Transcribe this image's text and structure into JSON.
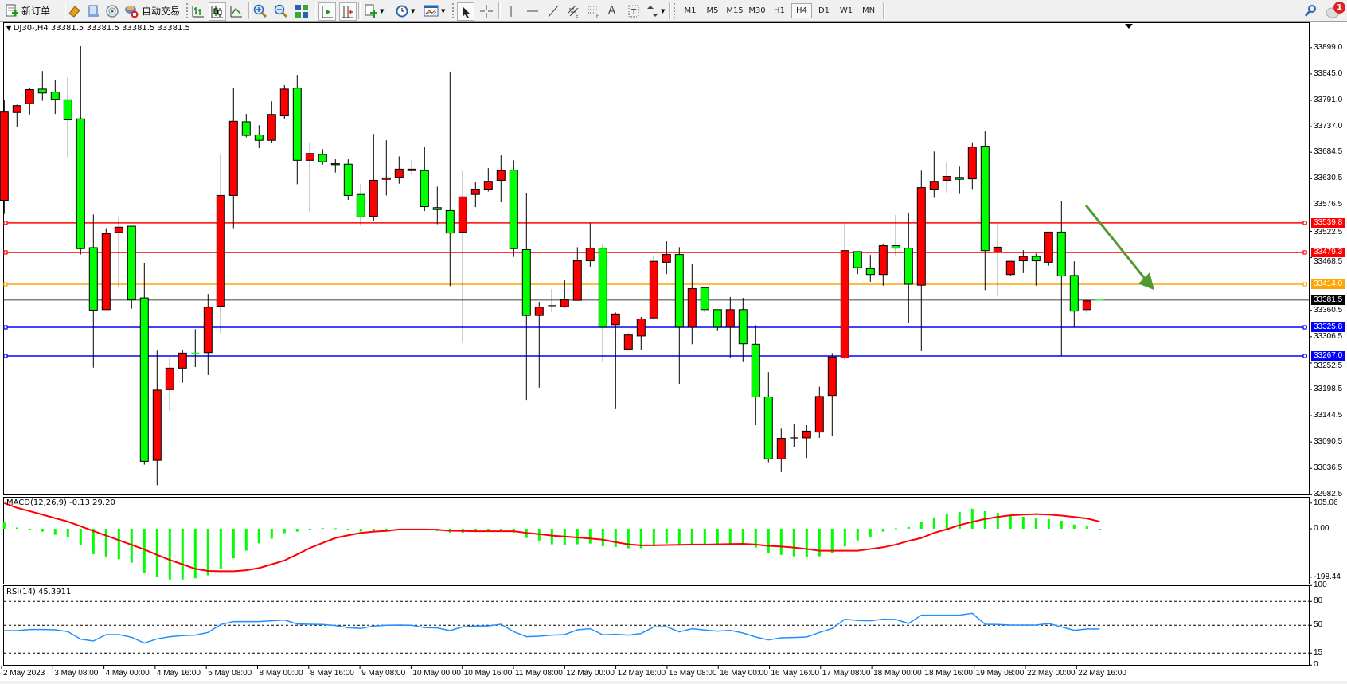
{
  "toolbar": {
    "new_order_label": "新订单",
    "auto_trading_label": "自动交易",
    "timeframes": [
      "M1",
      "M5",
      "M15",
      "M30",
      "H1",
      "H4",
      "D1",
      "W1",
      "MN"
    ],
    "active_timeframe": "H4",
    "notification_count": "1",
    "icons": [
      "new-order-icon",
      "market-watch-icon",
      "data-window-icon",
      "signals-icon",
      "auto-trading-icon",
      "bar-chart-icon",
      "candlestick-icon",
      "line-chart-icon",
      "zoom-in-icon",
      "zoom-out-icon",
      "tile-windows-icon",
      "auto-scroll-icon",
      "chart-shift-icon",
      "indicators-icon",
      "periods-icon",
      "templates-icon",
      "cursor-icon",
      "crosshair-icon",
      "vertical-line-icon",
      "horizontal-line-icon",
      "trendline-icon",
      "equidistant-channel-icon",
      "fibonacci-icon",
      "text-icon",
      "text-label-icon",
      "arrows-icon",
      "search-icon",
      "notification-icon"
    ]
  },
  "chart": {
    "header": "DJ30-,H4  33381.5 33381.5 33381.5 33381.5",
    "symbol": "DJ30-",
    "timeframe": "H4",
    "bid": 33381.5,
    "bid_label": "33381.5",
    "colors": {
      "bull": "#ff0000",
      "bear": "#00ff00",
      "background": "#ffffff",
      "arrow": "#4f9a2e",
      "macd_hist": "#00ff00",
      "macd_signal": "#ff0000",
      "rsi": "#1e90ff"
    },
    "price_axis": [
      "33899.0",
      "33845.0",
      "33791.0",
      "33737.0",
      "33684.5",
      "33630.5",
      "33576.5",
      "33522.5",
      "33468.5",
      "33360.5",
      "33306.5",
      "33252.5",
      "33198.5",
      "33144.5",
      "33090.5",
      "33036.5",
      "32982.5"
    ],
    "levels": [
      {
        "price": 33539.8,
        "label": "33539.8",
        "color": "#ff0000"
      },
      {
        "price": 33479.3,
        "label": "33479.3",
        "color": "#ff0000"
      },
      {
        "price": 33414.0,
        "label": "33414.0",
        "color": "#ffa500"
      },
      {
        "price": 33325.8,
        "label": "33325.8",
        "color": "#0000ff"
      },
      {
        "price": 33267.0,
        "label": "33267.0",
        "color": "#0000ff"
      }
    ],
    "arrow": {
      "direction": "down",
      "from_price": 33576,
      "to_price": 33402,
      "color": "#4f9a2e"
    },
    "time_axis": [
      "2 May 2023",
      "3 May 08:00",
      "4 May 00:00",
      "4 May 16:00",
      "5 May 08:00",
      "8 May 00:00",
      "8 May 16:00",
      "9 May 08:00",
      "10 May 00:00",
      "10 May 16:00",
      "11 May 08:00",
      "12 May 00:00",
      "12 May 16:00",
      "15 May 08:00",
      "16 May 00:00",
      "16 May 16:00",
      "17 May 08:00",
      "18 May 00:00",
      "18 May 16:00",
      "19 May 08:00",
      "22 May 00:00",
      "22 May 16:00"
    ]
  },
  "macd": {
    "label": "MACD(12,26,9) -0.13 29.20",
    "axis": [
      "105.06",
      "0.00",
      "-198.44"
    ]
  },
  "rsi": {
    "label": "RSI(14) 45.3911",
    "axis": [
      "100",
      "80",
      "50",
      "15",
      "0"
    ],
    "levels": [
      80,
      50,
      15
    ]
  },
  "chart_data": {
    "type": "candlestick",
    "ohlc_order": [
      "open",
      "high",
      "low",
      "close"
    ],
    "ylim": [
      32982.5,
      33899.0
    ],
    "candles": [
      [
        33586,
        33791,
        33558,
        33767
      ],
      [
        33766,
        33782,
        33736,
        33780
      ],
      [
        33784,
        33817,
        33762,
        33813
      ],
      [
        33814,
        33851,
        33790,
        33806
      ],
      [
        33808,
        33832,
        33763,
        33793
      ],
      [
        33792,
        33838,
        33674,
        33751
      ],
      [
        33753,
        33902,
        33475,
        33487
      ],
      [
        33489,
        33557,
        33243,
        33361
      ],
      [
        33362,
        33529,
        33362,
        33518
      ],
      [
        33520,
        33552,
        33409,
        33531
      ],
      [
        33533,
        33533,
        33364,
        33382
      ],
      [
        33386,
        33458,
        33044,
        33051
      ],
      [
        33053,
        33278,
        33002,
        33197
      ],
      [
        33198,
        33262,
        33155,
        33242
      ],
      [
        33242,
        33280,
        33212,
        33273
      ],
      [
        33273,
        33322,
        33244,
        33273
      ],
      [
        33274,
        33394,
        33228,
        33367
      ],
      [
        33369,
        33680,
        33314,
        33596
      ],
      [
        33596,
        33817,
        33529,
        33748
      ],
      [
        33747,
        33763,
        33715,
        33719
      ],
      [
        33720,
        33740,
        33693,
        33709
      ],
      [
        33709,
        33789,
        33703,
        33762
      ],
      [
        33759,
        33822,
        33752,
        33814
      ],
      [
        33816,
        33843,
        33619,
        33668
      ],
      [
        33668,
        33704,
        33563,
        33682
      ],
      [
        33680,
        33691,
        33659,
        33665
      ],
      [
        33661,
        33670,
        33643,
        33659
      ],
      [
        33660,
        33670,
        33587,
        33596
      ],
      [
        33598,
        33619,
        33534,
        33552
      ],
      [
        33553,
        33722,
        33543,
        33627
      ],
      [
        33629,
        33709,
        33596,
        33632
      ],
      [
        33633,
        33676,
        33620,
        33650
      ],
      [
        33647,
        33668,
        33639,
        33650
      ],
      [
        33647,
        33696,
        33564,
        33573
      ],
      [
        33571,
        33614,
        33537,
        33567
      ],
      [
        33565,
        33850,
        33410,
        33519
      ],
      [
        33521,
        33646,
        33295,
        33593
      ],
      [
        33598,
        33623,
        33572,
        33609
      ],
      [
        33609,
        33652,
        33604,
        33625
      ],
      [
        33627,
        33678,
        33582,
        33647
      ],
      [
        33648,
        33668,
        33470,
        33487
      ],
      [
        33485,
        33601,
        33177,
        33350
      ],
      [
        33350,
        33378,
        33202,
        33367
      ],
      [
        33370,
        33404,
        33357,
        33370
      ],
      [
        33368,
        33422,
        33366,
        33382
      ],
      [
        33381,
        33490,
        33381,
        33462
      ],
      [
        33462,
        33539,
        33450,
        33488
      ],
      [
        33488,
        33497,
        33254,
        33326
      ],
      [
        33331,
        33356,
        33158,
        33353
      ],
      [
        33281,
        33313,
        33279,
        33310
      ],
      [
        33308,
        33347,
        33279,
        33343
      ],
      [
        33345,
        33471,
        33341,
        33461
      ],
      [
        33459,
        33502,
        33435,
        33475
      ],
      [
        33475,
        33490,
        33210,
        33326
      ],
      [
        33326,
        33455,
        33291,
        33405
      ],
      [
        33407,
        33407,
        33357,
        33362
      ],
      [
        33362,
        33362,
        33318,
        33326
      ],
      [
        33326,
        33388,
        33264,
        33362
      ],
      [
        33362,
        33386,
        33256,
        33292
      ],
      [
        33291,
        33330,
        33125,
        33183
      ],
      [
        33183,
        33234,
        33049,
        33056
      ],
      [
        33056,
        33118,
        33029,
        33098
      ],
      [
        33099,
        33127,
        33081,
        33099
      ],
      [
        33099,
        33125,
        33058,
        33113
      ],
      [
        33111,
        33204,
        33099,
        33184
      ],
      [
        33186,
        33273,
        33103,
        33265
      ],
      [
        33263,
        33539,
        33259,
        33483
      ],
      [
        33481,
        33481,
        33435,
        33448
      ],
      [
        33446,
        33474,
        33419,
        33434
      ],
      [
        33434,
        33497,
        33411,
        33493
      ],
      [
        33493,
        33556,
        33472,
        33488
      ],
      [
        33488,
        33561,
        33334,
        33414
      ],
      [
        33412,
        33647,
        33277,
        33612
      ],
      [
        33609,
        33686,
        33591,
        33625
      ],
      [
        33627,
        33663,
        33602,
        33635
      ],
      [
        33633,
        33655,
        33599,
        33629
      ],
      [
        33630,
        33705,
        33609,
        33695
      ],
      [
        33697,
        33727,
        33402,
        33483
      ],
      [
        33480,
        33539,
        33390,
        33490
      ],
      [
        33434,
        33462,
        33432,
        33461
      ],
      [
        33462,
        33484,
        33437,
        33471
      ],
      [
        33471,
        33477,
        33411,
        33462
      ],
      [
        33459,
        33521,
        33452,
        33521
      ],
      [
        33521,
        33584,
        33267,
        33431
      ],
      [
        33432,
        33461,
        33326,
        33359
      ],
      [
        33362,
        33385,
        33357,
        33380
      ],
      [
        33381.5,
        33381.5,
        33381.5,
        33381.5
      ]
    ],
    "macd_hist": [
      26,
      5,
      -3,
      -12,
      -25,
      -36,
      -68,
      -104,
      -114,
      -125,
      -139,
      -182,
      -197,
      -208,
      -208,
      -203,
      -191,
      -163,
      -121,
      -90,
      -60,
      -41,
      -18,
      -12,
      -5,
      3,
      2,
      -2,
      -12,
      -10,
      -8,
      -5,
      -3,
      -5,
      -9,
      -16,
      -16,
      -10,
      -8,
      -8,
      -16,
      -38,
      -50,
      -64,
      -68,
      -64,
      -61,
      -72,
      -75,
      -80,
      -80,
      -66,
      -61,
      -66,
      -63,
      -66,
      -68,
      -66,
      -66,
      -77,
      -98,
      -107,
      -113,
      -117,
      -113,
      -100,
      -72,
      -48,
      -33,
      -12,
      2,
      7,
      29,
      46,
      59,
      68,
      82,
      72,
      65,
      54,
      49,
      42,
      39,
      33,
      17,
      11,
      -0.13
    ],
    "macd_signal": [
      105,
      86,
      72,
      58,
      43,
      29,
      10,
      -9,
      -28,
      -47,
      -66,
      -85,
      -107,
      -128,
      -146,
      -164,
      -173,
      -174,
      -174,
      -170,
      -161,
      -146,
      -130,
      -105,
      -79,
      -58,
      -38,
      -27,
      -17,
      -12,
      -9,
      -3,
      -3,
      -3,
      -4,
      -8,
      -9,
      -10,
      -10,
      -10,
      -10,
      -17,
      -22,
      -28,
      -32,
      -36,
      -40,
      -45,
      -55,
      -64,
      -68,
      -68,
      -67,
      -66,
      -65,
      -65,
      -64,
      -63,
      -62,
      -65,
      -70,
      -73,
      -77,
      -83,
      -90,
      -90,
      -90,
      -90,
      -83,
      -76,
      -65,
      -50,
      -38,
      -17,
      -2,
      15,
      28,
      40,
      48,
      55,
      58,
      60,
      58,
      54,
      48,
      42,
      29.2
    ],
    "macd_ylim": [
      -198.44,
      105.06
    ],
    "rsi": [
      43.3,
      43.3,
      44.7,
      44.7,
      44.3,
      42,
      32.7,
      30.3,
      38.3,
      38.3,
      35,
      27.7,
      33,
      35.7,
      37,
      37.7,
      41,
      51,
      54.7,
      54.7,
      54.7,
      55.7,
      56.7,
      51.7,
      51.3,
      51,
      49.7,
      47,
      46,
      49,
      50,
      50.3,
      50,
      47,
      46.7,
      43.3,
      48,
      49,
      49.3,
      51.3,
      42,
      35.7,
      36.3,
      37.7,
      38.3,
      44.3,
      45.7,
      38,
      38.7,
      37.7,
      39.7,
      48,
      48.3,
      41.7,
      45.7,
      44,
      42.7,
      43.7,
      40.3,
      35.3,
      31.7,
      34.3,
      34.7,
      35.3,
      41,
      46,
      57.7,
      56,
      55.7,
      57.7,
      57.3,
      52.3,
      62.7,
      62.7,
      62.7,
      62.7,
      65,
      51.3,
      51,
      50.3,
      50.3,
      50.3,
      52.3,
      48,
      43.7,
      45.3,
      45.3911
    ],
    "rsi_ylim": [
      0,
      100
    ]
  }
}
